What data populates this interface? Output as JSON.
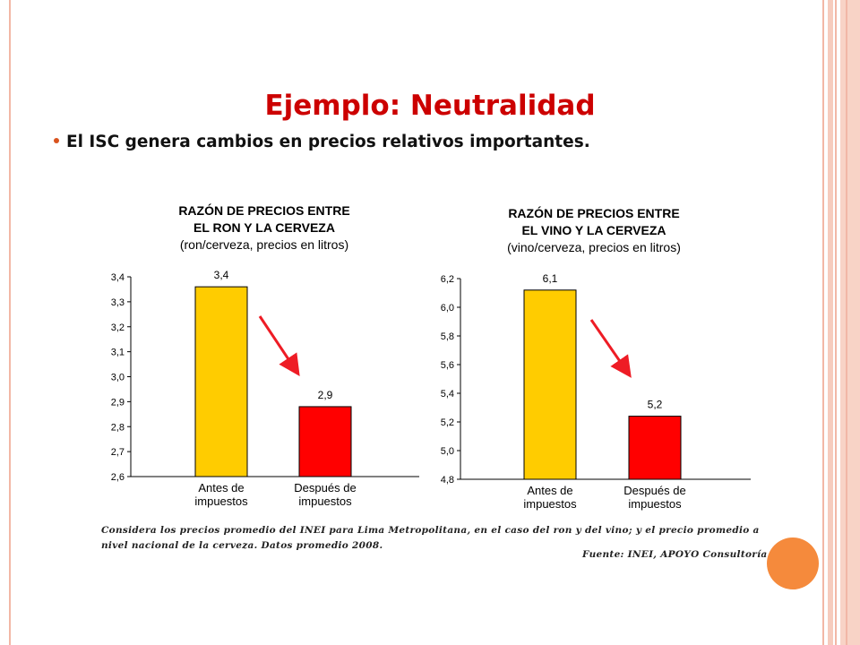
{
  "slide": {
    "title": "Ejemplo: Neutralidad",
    "bullet": "El ISC genera cambios en precios relativos importantes.",
    "note": "Considera los precios promedio del INEI para Lima Metropolitana, en el caso del ron y del vino; y el precio promedio a nivel nacional de la cerveza. Datos promedio 2008.",
    "source": "Fuente: INEI, APOYO Consultoría",
    "colors": {
      "title": "#cc0000",
      "bar_before": "#ffcc00",
      "bar_after": "#ff0000",
      "arrow": "#ee1c25",
      "accent_circle": "#f58a3c"
    }
  },
  "chart_data": [
    {
      "type": "bar",
      "title_lines": [
        "RAZÓN DE PRECIOS ENTRE",
        "EL RON Y LA CERVEZA",
        "(ron/cerveza, precios en litros)"
      ],
      "categories": [
        [
          "Antes de",
          "impuestos"
        ],
        [
          "Después de",
          "impuestos"
        ]
      ],
      "values": [
        3.36,
        2.88
      ],
      "data_labels": [
        "3,4",
        "2,9"
      ],
      "ylim": [
        2.6,
        3.4
      ],
      "yticks": [
        "2,6",
        "2,7",
        "2,8",
        "2,9",
        "3,0",
        "3,1",
        "3,2",
        "3,3",
        "3,4"
      ],
      "ytick_values": [
        2.6,
        2.7,
        2.8,
        2.9,
        3.0,
        3.1,
        3.2,
        3.3,
        3.4
      ],
      "grid": false,
      "annotation": "down-arrow"
    },
    {
      "type": "bar",
      "title_lines": [
        "RAZÓN DE PRECIOS ENTRE",
        "EL VINO Y LA CERVEZA",
        "(vino/cerveza, precios en litros)"
      ],
      "categories": [
        [
          "Antes de",
          "impuestos"
        ],
        [
          "Después de",
          "impuestos"
        ]
      ],
      "values": [
        6.12,
        5.24
      ],
      "data_labels": [
        "6,1",
        "5,2"
      ],
      "ylim": [
        4.8,
        6.2
      ],
      "yticks": [
        "4,8",
        "5,0",
        "5,2",
        "5,4",
        "5,6",
        "5,8",
        "6,0",
        "6,2"
      ],
      "ytick_values": [
        4.8,
        5.0,
        5.2,
        5.4,
        5.6,
        5.8,
        6.0,
        6.2
      ],
      "grid": false,
      "annotation": "down-arrow"
    }
  ]
}
